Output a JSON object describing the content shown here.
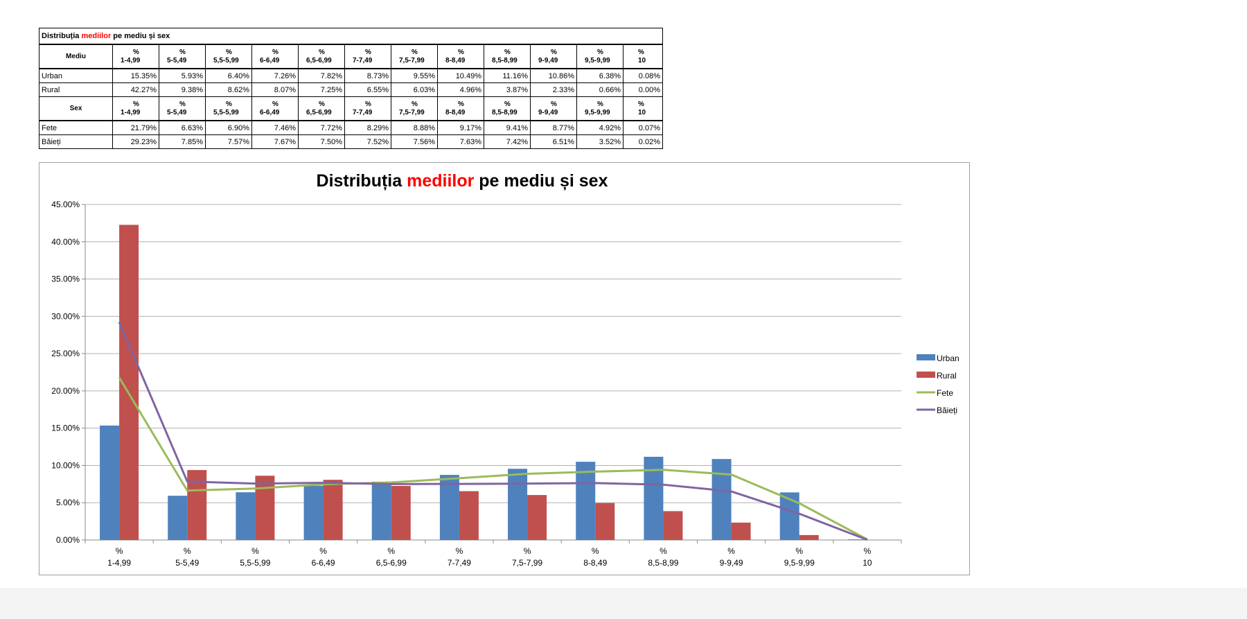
{
  "table": {
    "title_part1": "Distribuția ",
    "title_highlight": "mediilor",
    "title_part2": " pe mediu și sex",
    "header_mediu": "Mediu",
    "header_sex": "Sex",
    "column_headers": [
      {
        "line1": "%",
        "line2": "1-4,99"
      },
      {
        "line1": "%",
        "line2": "5-5,49"
      },
      {
        "line1": "%",
        "line2": "5,5-5,99"
      },
      {
        "line1": "%",
        "line2": "6-6,49"
      },
      {
        "line1": "%",
        "line2": "6,5-6,99"
      },
      {
        "line1": "%",
        "line2": "7-7,49"
      },
      {
        "line1": "%",
        "line2": "7,5-7,99"
      },
      {
        "line1": "%",
        "line2": "8-8,49"
      },
      {
        "line1": "%",
        "line2": "8,5-8,99"
      },
      {
        "line1": "%",
        "line2": "9-9,49"
      },
      {
        "line1": "%",
        "line2": "9,5-9,99"
      },
      {
        "line1": "%",
        "line2": "10"
      }
    ],
    "mediu_rows": [
      {
        "label": "Urban",
        "values": [
          "15.35%",
          "5.93%",
          "6.40%",
          "7.26%",
          "7.82%",
          "8.73%",
          "9.55%",
          "10.49%",
          "11.16%",
          "10.86%",
          "6.38%",
          "0.08%"
        ]
      },
      {
        "label": "Rural",
        "values": [
          "42.27%",
          "9.38%",
          "8.62%",
          "8.07%",
          "7.25%",
          "6.55%",
          "6.03%",
          "4.96%",
          "3.87%",
          "2.33%",
          "0.66%",
          "0.00%"
        ]
      }
    ],
    "sex_rows": [
      {
        "label": "Fete",
        "values": [
          "21.79%",
          "6.63%",
          "6.90%",
          "7.46%",
          "7.72%",
          "8.29%",
          "8.88%",
          "9.17%",
          "9.41%",
          "8.77%",
          "4.92%",
          "0.07%"
        ]
      },
      {
        "label": "Băieți",
        "values": [
          "29.23%",
          "7.85%",
          "7.57%",
          "7.67%",
          "7.50%",
          "7.52%",
          "7.56%",
          "7.63%",
          "7.42%",
          "6.51%",
          "3.52%",
          "0.02%"
        ]
      }
    ]
  },
  "chart_data": {
    "type": "bar",
    "title_part1": "Distribuția ",
    "title_highlight": "mediilor",
    "title_part2": " pe mediu și sex",
    "categories": [
      [
        "%",
        "1-4,99"
      ],
      [
        "%",
        "5-5,49"
      ],
      [
        "%",
        "5,5-5,99"
      ],
      [
        "%",
        "6-6,49"
      ],
      [
        "%",
        "6,5-6,99"
      ],
      [
        "%",
        "7-7,49"
      ],
      [
        "%",
        "7,5-7,99"
      ],
      [
        "%",
        "8-8,49"
      ],
      [
        "%",
        "8,5-8,99"
      ],
      [
        "%",
        "9-9,49"
      ],
      [
        "%",
        "9,5-9,99"
      ],
      [
        "%",
        "10"
      ]
    ],
    "series": [
      {
        "name": "Urban",
        "kind": "bar",
        "color": "#4f81bd",
        "values": [
          15.35,
          5.93,
          6.4,
          7.26,
          7.82,
          8.73,
          9.55,
          10.49,
          11.16,
          10.86,
          6.38,
          0.08
        ]
      },
      {
        "name": "Rural",
        "kind": "bar",
        "color": "#c0504d",
        "values": [
          42.27,
          9.38,
          8.62,
          8.07,
          7.25,
          6.55,
          6.03,
          4.96,
          3.87,
          2.33,
          0.66,
          0.0
        ]
      },
      {
        "name": "Fete",
        "kind": "line",
        "color": "#9bbb59",
        "values": [
          21.79,
          6.63,
          6.9,
          7.46,
          7.72,
          8.29,
          8.88,
          9.17,
          9.41,
          8.77,
          4.92,
          0.07
        ]
      },
      {
        "name": "Băieți",
        "kind": "line",
        "color": "#8064a2",
        "values": [
          29.23,
          7.85,
          7.57,
          7.67,
          7.5,
          7.52,
          7.56,
          7.63,
          7.42,
          6.51,
          3.52,
          0.02
        ]
      }
    ],
    "yticks": [
      "0.00%",
      "5.00%",
      "10.00%",
      "15.00%",
      "20.00%",
      "25.00%",
      "30.00%",
      "35.00%",
      "40.00%",
      "45.00%"
    ],
    "ylim": [
      0,
      45
    ],
    "grid": true,
    "legend_position": "right",
    "title_highlight_color": "#ff0000"
  }
}
